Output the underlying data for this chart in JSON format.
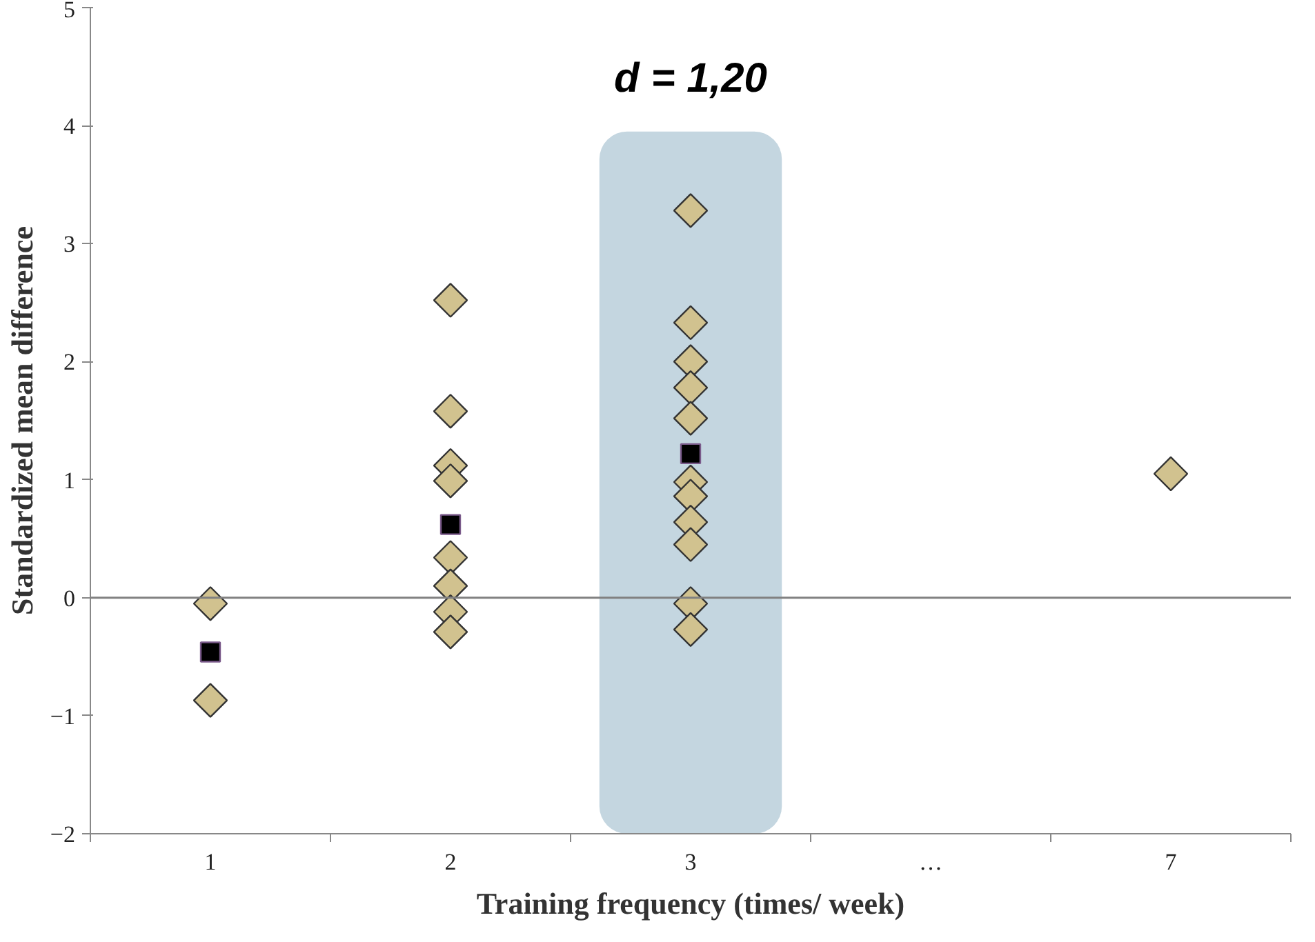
{
  "chart_data": {
    "type": "scatter",
    "xlabel": "Training frequency (times/ week)",
    "ylabel": "Standardized mean difference",
    "categories": [
      "1",
      "2",
      "3",
      "…",
      "7"
    ],
    "ylim": [
      -2,
      5
    ],
    "yticks": [
      -2,
      -1,
      0,
      1,
      2,
      3,
      4,
      5
    ],
    "grid": false,
    "series": [
      {
        "color": "#d1c28f",
        "marker": "diamond",
        "x": [
          "1",
          "1",
          "2",
          "2",
          "2",
          "2",
          "2",
          "2",
          "2",
          "2",
          "2",
          "3",
          "3",
          "3",
          "3",
          "3",
          "3",
          "3",
          "3",
          "3",
          "3",
          "3",
          "3",
          "7"
        ],
        "values": [
          -0.05,
          -0.87,
          2.52,
          1.58,
          1.12,
          0.99,
          0.34,
          null,
          0.1,
          -0.12,
          -0.29,
          3.28,
          2.33,
          2.0,
          1.78,
          1.52,
          null,
          0.98,
          0.86,
          0.64,
          0.45,
          -0.05,
          -0.27,
          1.05
        ]
      },
      {
        "color": "#000000",
        "marker": "square",
        "x": [
          "1",
          "2",
          "3"
        ],
        "values": [
          -0.46,
          0.62,
          1.22
        ]
      }
    ],
    "ref_lines": [
      {
        "axis": "y",
        "value": 0,
        "color": "#808080"
      }
    ],
    "bands": [
      {
        "axis": "x",
        "from": "3",
        "to": "3",
        "color": "#c4d6e0"
      }
    ],
    "annotations": [
      "d = 1,20"
    ]
  }
}
